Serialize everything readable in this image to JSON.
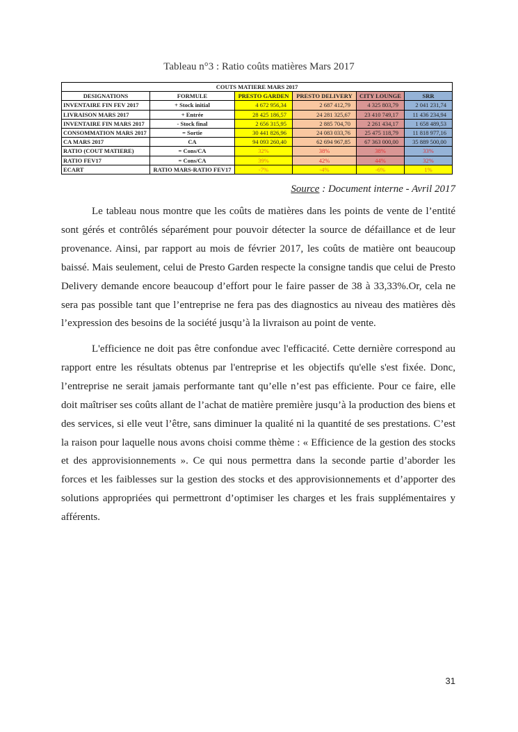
{
  "caption": "Tableau n°3 : Ratio coûts matières Mars 2017",
  "table": {
    "title": "COUTS  MATIERE MARS 2017",
    "headers": [
      "DESIGNATIONS",
      "FORMULE",
      "PRESTO GARDEN",
      "PRESTO DELIVERY",
      "CITY LOUNGE",
      "SRR"
    ],
    "column_colors": {
      "presto_garden": "#ffff00",
      "presto_delivery": "#f9c7a0",
      "city_lounge": "#d99694",
      "srr": "#95b3d7"
    },
    "rows": [
      [
        "INVENTAIRE FIN FEV 2017",
        "+ Stock initial",
        "4 672 956,34",
        "2 687 412,79",
        "4 325 803,79",
        "2 041 231,74"
      ],
      [
        "LIVRAISON MARS 2017",
        "+ Entrée",
        "28 425 186,57",
        "24 281 325,67",
        "23 410 749,17",
        "11 436 234,94"
      ],
      [
        "INVENTAIRE FIN MARS 2017",
        "- Stock final",
        "2 656 315,95",
        "2 885 704,70",
        "2 261 434,17",
        "1 658 489,53"
      ],
      [
        "CONSOMMATION MARS 2017",
        "= Sortie",
        "30 441 826,96",
        "24 083 033,76",
        "25 475 118,79",
        "11 818 977,16"
      ],
      [
        "CA  MARS 2017",
        "CA",
        "94 093 260,40",
        "62 694 967,85",
        "67 363 000,00",
        "35 889 500,00"
      ],
      [
        "RATIO (COUT MATIERE)",
        "= Cons/CA",
        "32%",
        "38%",
        "38%",
        "33%"
      ],
      [
        "RATIO FEV17",
        "= Cons/CA",
        "39%",
        "42%",
        "44%",
        "32%"
      ],
      [
        "ECART",
        "RATIO MARS-RATIO FEV17",
        "-7%",
        "-4%",
        "-6%",
        "1%"
      ]
    ]
  },
  "source": {
    "label": "Source",
    "text": " : Document interne - Avril 2017"
  },
  "paragraphs": [
    "Le tableau nous montre que les coûts de matières dans les points de vente de l’entité sont gérés et contrôlés séparément pour pouvoir détecter la source de défaillance et de leur provenance. Ainsi, par rapport au mois de février 2017, les coûts de matière ont beaucoup baissé. Mais seulement, celui de Presto Garden respecte la consigne tandis que celui de Presto Delivery demande encore beaucoup d’effort pour le faire passer de 38 à 33,33%.Or, cela ne sera pas possible tant que l’entreprise ne fera pas des diagnostics au niveau des matières dès l’expression des besoins de la société jusqu’à la livraison au point de vente.",
    "L'efficience ne doit pas être confondue avec l'efficacité. Cette dernière correspond au rapport entre les résultats obtenus par l'entreprise et les objectifs qu'elle s'est fixée. Donc, l’entreprise ne serait jamais performante tant qu’elle n’est pas efficiente. Pour ce faire, elle doit maîtriser ses coûts allant de l’achat de matière première jusqu’à la production des biens et des services, si elle veut l’être, sans diminuer la qualité ni la quantité de ses prestations. C’est la raison pour laquelle nous avons choisi comme thème : « Efficience de la gestion des stocks et des approvisionnements ». Ce qui nous permettra dans la seconde partie d’aborder les forces et les faiblesses sur la gestion des stocks et des approvisionnements et d’apporter des solutions appropriées qui permettront d’optimiser les charges et les frais supplémentaires y afférents."
  ],
  "page_number": "31"
}
